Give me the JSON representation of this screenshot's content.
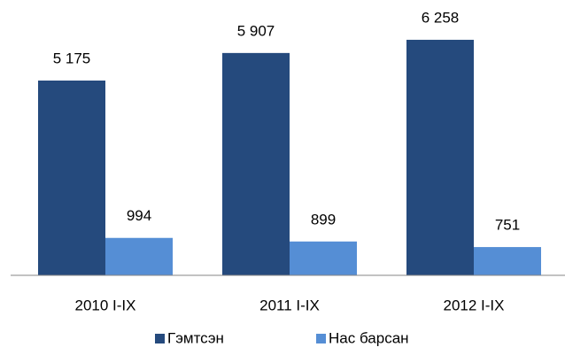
{
  "chart_data": {
    "type": "bar",
    "categories": [
      "2010 I-IX",
      "2011 I-IX",
      "2012 I-IX"
    ],
    "series": [
      {
        "name": "Гэмтсэн",
        "color": "#254a7d",
        "values": [
          5175,
          5907,
          6258
        ],
        "value_labels": [
          "5 175",
          "5 907",
          "6 258"
        ]
      },
      {
        "name": "Нас барсан",
        "color": "#558ed5",
        "values": [
          994,
          899,
          751
        ]
      }
    ],
    "ylim": [
      0,
      7000
    ],
    "legend": "bottom"
  }
}
